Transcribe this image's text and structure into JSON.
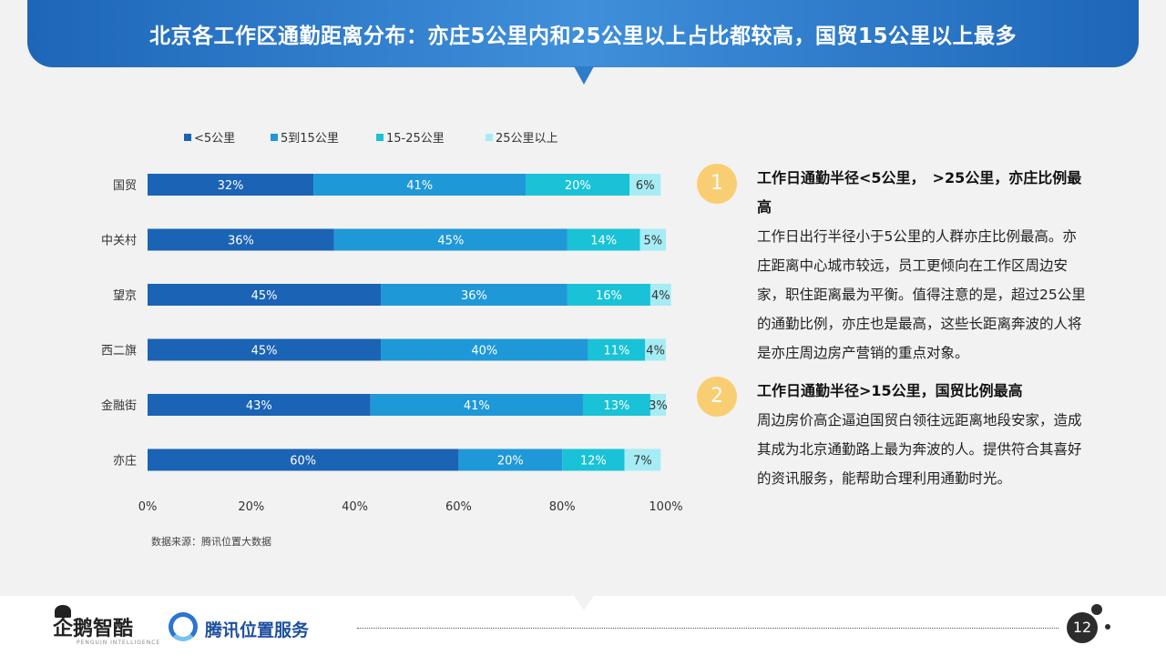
{
  "title": "北京各工作区通勤距离分布：亦庄5公里内和25公里以上占比都较高，国贸15公里以上最多",
  "chart_data": {
    "type": "bar",
    "orientation": "horizontal",
    "stacked": true,
    "categories": [
      "国贸",
      "中关村",
      "望京",
      "西二旗",
      "金融街",
      "亦庄"
    ],
    "series": [
      {
        "name": "<5公里",
        "color": "#1a63b5",
        "values": [
          32,
          36,
          45,
          45,
          43,
          60
        ],
        "labels": [
          "32%",
          "36%",
          "45%",
          "45%",
          "43%",
          "60%"
        ]
      },
      {
        "name": "5到15公里",
        "color": "#1f98d8",
        "values": [
          41,
          45,
          36,
          40,
          41,
          20
        ],
        "labels": [
          "41%",
          "45%",
          "36%",
          "40%",
          "41%",
          "20%"
        ]
      },
      {
        "name": "15-25公里",
        "color": "#19c2d6",
        "values": [
          20,
          14,
          16,
          11,
          13,
          12
        ],
        "labels": [
          "20%",
          "14%",
          "16%",
          "11%",
          "13%",
          "12%"
        ]
      },
      {
        "name": "25公里以上",
        "color": "#a6ecf5",
        "values": [
          6,
          5,
          4,
          4,
          3,
          7
        ],
        "labels": [
          "6%",
          "5%",
          "4%",
          "4%",
          "3%",
          "7%"
        ]
      }
    ],
    "xlim": [
      0,
      100
    ],
    "xticks": [
      0,
      20,
      40,
      60,
      80,
      100
    ],
    "xtick_labels": [
      "0%",
      "20%",
      "40%",
      "60%",
      "80%",
      "100%"
    ],
    "legend_position": "top",
    "grid": false
  },
  "source_note": "数据来源：腾讯位置大数据",
  "points": [
    {
      "num": "1",
      "heading": "工作日通勤半径<5公里，　>25公里，亦庄比例最高",
      "body": "工作日出行半径小于5公里的人群亦庄比例最高。亦庄距离中心城市较远，员工更倾向在工作区周边安家，职住距离最为平衡。值得注意的是，超过25公里的通勤比例，亦庄也是最高，这些长距离奔波的人将是亦庄周边房产营销的重点对象。"
    },
    {
      "num": "2",
      "heading": "工作日通勤半径>15公里，国贸比例最高",
      "body": "周边房价高企逼迫国贸白领往远距离地段安家，造成其成为北京通勤路上最为奔波的人。提供符合其喜好的资讯服务，能帮助合理利用通勤时光。"
    }
  ],
  "footer": {
    "logo_qe": "企鹅智酷",
    "logo_qe_sub": "PENGUIN INTELLIGENCE",
    "logo_tencent": "腾讯位置服务",
    "page_number": "12"
  }
}
